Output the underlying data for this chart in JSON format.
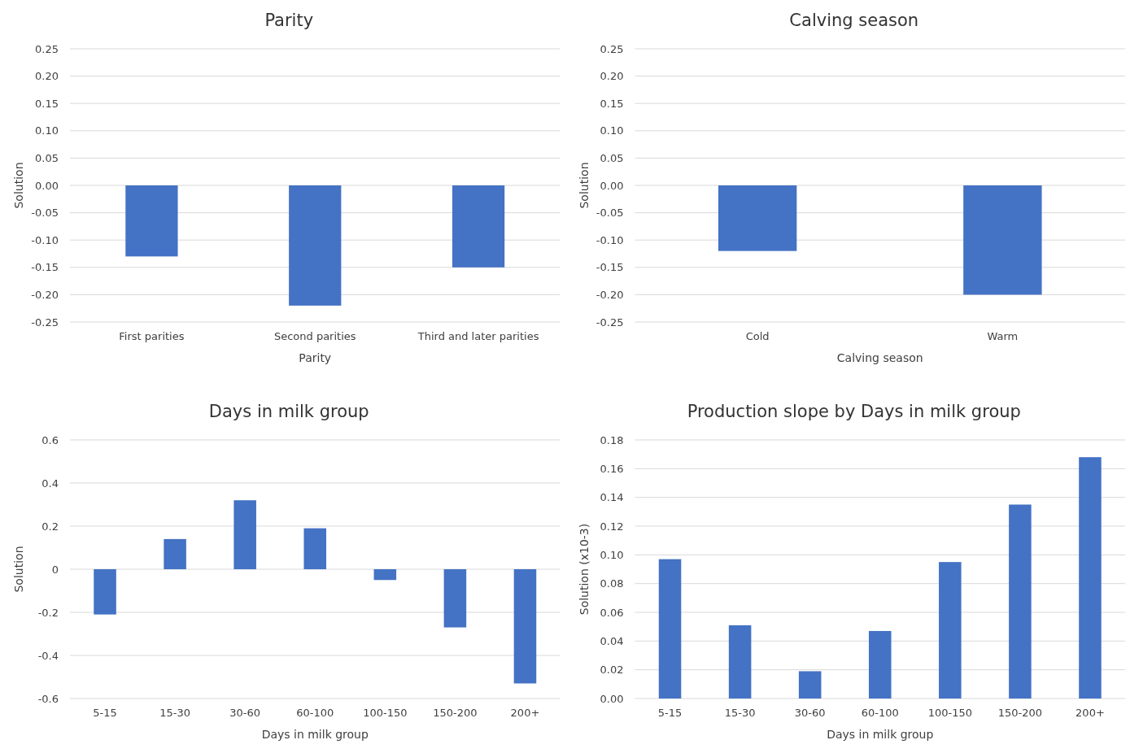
{
  "chart_data": [
    {
      "type": "bar",
      "title": "Parity",
      "xlabel": "Parity",
      "ylabel": "Solution",
      "categories": [
        "First parities",
        "Second parities",
        "Third and later parities"
      ],
      "values": [
        -0.13,
        -0.22,
        -0.15
      ],
      "color": "#4472c4",
      "ylim": [
        -0.25,
        0.25
      ],
      "yticks": [
        -0.25,
        {
          "value": -0.2,
          "label": "-0.20"
        },
        -0.15,
        {
          "value": -0.1,
          "label": "-0.10"
        },
        -0.05,
        {
          "value": 0,
          "label": "0.00"
        },
        0.05,
        {
          "value": 0.1,
          "label": "0.10"
        },
        0.15,
        {
          "value": 0.2,
          "label": "0.20"
        },
        0.25
      ],
      "grid": "y"
    },
    {
      "type": "bar",
      "title": "Calving season",
      "xlabel": "Calving season",
      "ylabel": "Solution",
      "categories": [
        "Cold",
        "Warm"
      ],
      "values": [
        -0.12,
        -0.2
      ],
      "color": "#4472c4",
      "ylim": [
        -0.25,
        0.25
      ],
      "yticks": [
        -0.25,
        {
          "value": -0.2,
          "label": "-0.20"
        },
        -0.15,
        {
          "value": -0.1,
          "label": "-0.10"
        },
        -0.05,
        {
          "value": 0,
          "label": "0.00"
        },
        0.05,
        {
          "value": 0.1,
          "label": "0.10"
        },
        0.15,
        {
          "value": 0.2,
          "label": "0.20"
        },
        0.25
      ],
      "grid": "y"
    },
    {
      "type": "bar",
      "title": "Days in milk group",
      "xlabel": "Days in milk group",
      "ylabel": "Solution",
      "categories": [
        "5-15",
        "15-30",
        "30-60",
        "60-100",
        "100-150",
        "150-200",
        "200+"
      ],
      "values": [
        -0.21,
        0.14,
        0.32,
        0.19,
        -0.05,
        -0.27,
        -0.53
      ],
      "color": "#4472c4",
      "ylim": [
        -0.6,
        0.6
      ],
      "yticks": [
        -0.6,
        -0.4,
        -0.2,
        0,
        0.2,
        0.4,
        0.6
      ],
      "grid": "y"
    },
    {
      "type": "bar",
      "title": "Production slope by Days in milk group",
      "xlabel": "Days in milk group",
      "ylabel": "Solution (x10-3)",
      "categories": [
        "5-15",
        "15-30",
        "30-60",
        "60-100",
        "100-150",
        "150-200",
        "200+"
      ],
      "values": [
        0.097,
        0.051,
        0.019,
        0.047,
        0.095,
        0.135,
        0.168
      ],
      "color": "#4472c4",
      "ylim": [
        0,
        0.18
      ],
      "yticks": [
        {
          "value": 0,
          "label": "0.00"
        },
        0.02,
        0.04,
        0.06,
        0.08,
        {
          "value": 0.1,
          "label": "0.10"
        },
        0.12,
        0.14,
        0.16,
        0.18
      ],
      "grid": "y"
    }
  ]
}
